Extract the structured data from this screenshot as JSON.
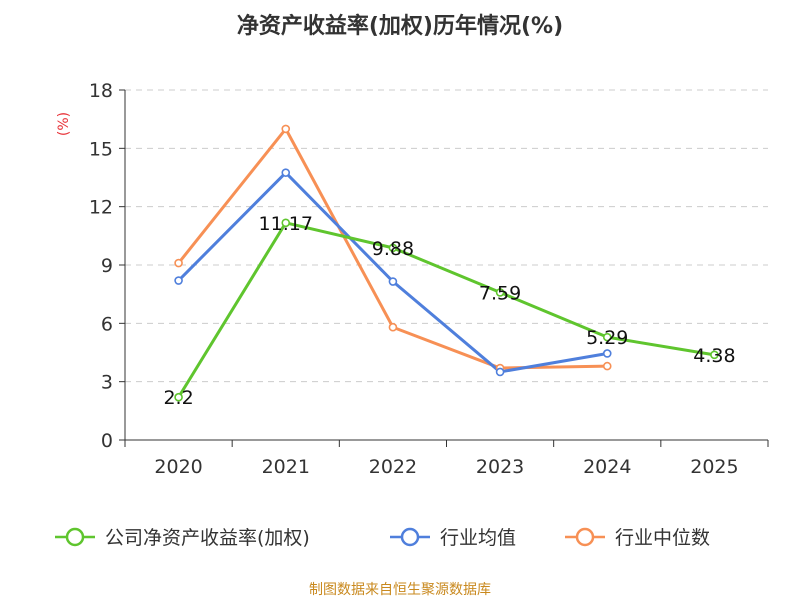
{
  "chart_data": {
    "type": "line",
    "title": "净资产收益率(加权)历年情况(%)",
    "ylabel": "(%)",
    "xlabel": "",
    "ylim": [
      0,
      18
    ],
    "yticks": [
      0,
      3,
      6,
      9,
      12,
      15,
      18
    ],
    "categories": [
      "2020",
      "2021",
      "2022",
      "2023",
      "2024",
      "2025"
    ],
    "grid": true,
    "legend_position": "bottom",
    "series": [
      {
        "name": "公司净资产收益率(加权)",
        "color": "#5fc52e",
        "values": [
          2.2,
          11.17,
          9.88,
          7.59,
          5.29,
          4.38
        ],
        "labels": [
          "2.2",
          "11.17",
          "9.88",
          "7.59",
          "5.29",
          "4.38"
        ],
        "show_labels": true
      },
      {
        "name": "行业均值",
        "color": "#4f7fdc",
        "values": [
          8.2,
          13.75,
          8.15,
          3.5,
          4.45,
          null
        ],
        "show_labels": false
      },
      {
        "name": "行业中位数",
        "color": "#f79055",
        "values": [
          9.1,
          16.0,
          5.8,
          3.7,
          3.8,
          null
        ],
        "show_labels": false
      }
    ]
  },
  "source": "制图数据来自恒生聚源数据库"
}
